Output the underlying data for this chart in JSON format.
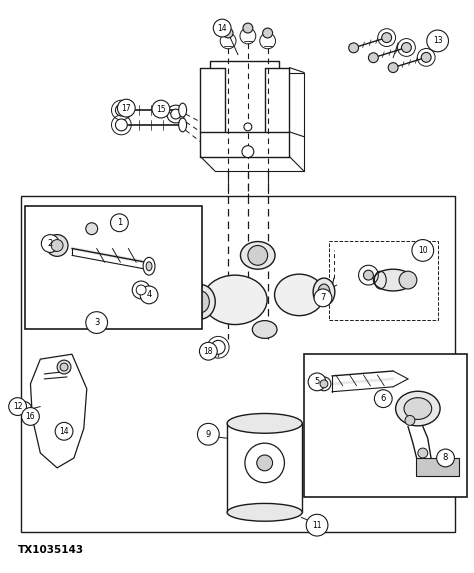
{
  "bg_color": "#ffffff",
  "line_color": "#1a1a1a",
  "fig_width": 4.74,
  "fig_height": 5.73,
  "dpi": 100,
  "caption": "TX1035143",
  "caption_fontsize": 7.5
}
